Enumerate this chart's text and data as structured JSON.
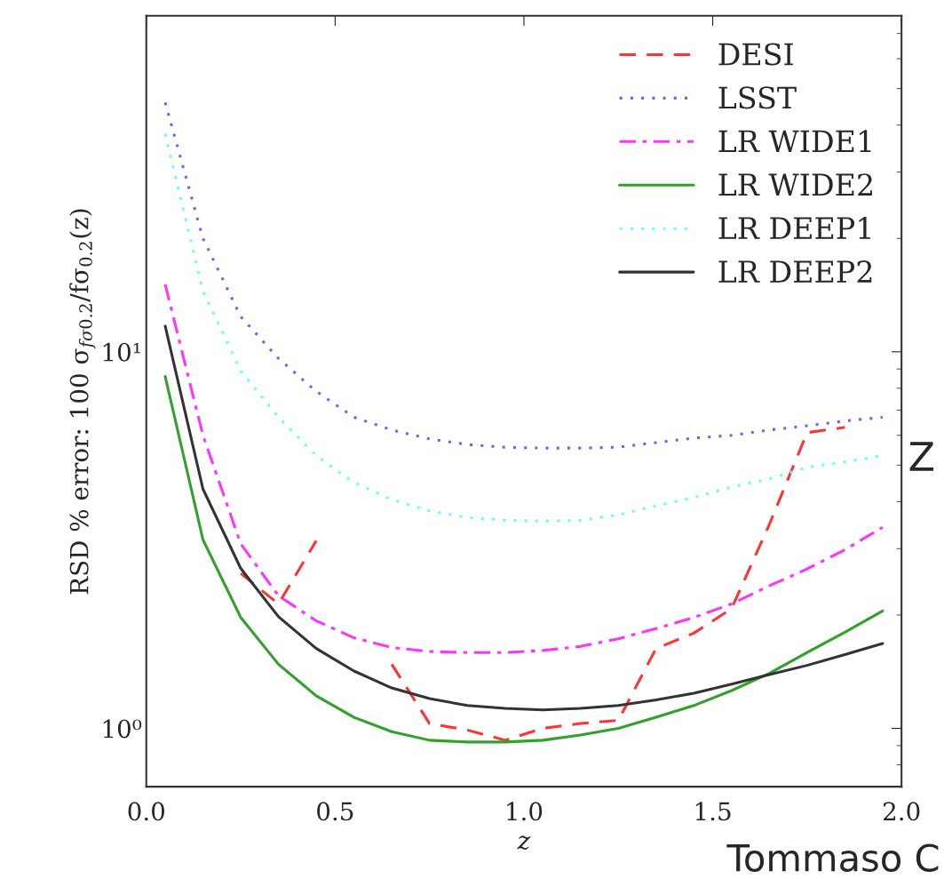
{
  "chart_data": {
    "type": "line",
    "xlabel": "z",
    "ylabel": "RSD % error: 100 σ$_{fσ0.2}$/fσ$_{0.2}$(z)",
    "x": [
      0.05,
      0.15,
      0.25,
      0.35,
      0.45,
      0.55,
      0.65,
      0.75,
      0.85,
      0.95,
      1.05,
      1.15,
      1.25,
      1.35,
      1.45,
      1.55,
      1.65,
      1.75,
      1.85,
      1.95
    ],
    "series": [
      {
        "name": "DESI",
        "color": "#ff3333",
        "line_style": "dashed",
        "values": [
          null,
          null,
          2.58,
          2.14,
          3.15,
          null,
          1.48,
          1.03,
          0.99,
          0.93,
          1.0,
          1.03,
          1.05,
          1.63,
          1.79,
          2.08,
          3.48,
          6.1,
          6.3,
          null
        ]
      },
      {
        "name": "LSST",
        "color": "#6666ff",
        "line_style": "dotted",
        "values": [
          45.9,
          20,
          12.4,
          9.6,
          7.85,
          6.7,
          6.2,
          5.87,
          5.67,
          5.58,
          5.55,
          5.55,
          5.58,
          5.74,
          5.9,
          6.0,
          6.2,
          6.36,
          6.55,
          6.7
        ]
      },
      {
        "name": "LR WIDE1",
        "color": "#ff33ff",
        "line_style": "dashdot",
        "values": [
          15.1,
          6.0,
          3.09,
          2.25,
          1.93,
          1.74,
          1.64,
          1.6,
          1.59,
          1.59,
          1.61,
          1.65,
          1.73,
          1.84,
          1.97,
          2.14,
          2.39,
          2.65,
          2.98,
          3.42
        ]
      },
      {
        "name": "LR WIDE2",
        "color": "#33a02c",
        "line_style": "solid",
        "values": [
          8.6,
          3.17,
          1.97,
          1.48,
          1.22,
          1.07,
          0.98,
          0.93,
          0.92,
          0.92,
          0.93,
          0.96,
          1.0,
          1.07,
          1.15,
          1.26,
          1.4,
          1.59,
          1.8,
          2.05
        ]
      },
      {
        "name": "LR DEEP1",
        "color": "#66ffff",
        "line_style": "dotted",
        "values": [
          37.9,
          14.5,
          8.9,
          6.7,
          5.3,
          4.5,
          4.05,
          3.78,
          3.63,
          3.57,
          3.55,
          3.57,
          3.69,
          3.9,
          4.1,
          4.37,
          4.6,
          4.93,
          5.1,
          5.3
        ]
      },
      {
        "name": "LR DEEP2",
        "color": "#333333",
        "line_style": "solid",
        "values": [
          11.7,
          4.32,
          2.66,
          1.98,
          1.63,
          1.42,
          1.28,
          1.2,
          1.15,
          1.13,
          1.12,
          1.13,
          1.15,
          1.19,
          1.24,
          1.31,
          1.39,
          1.47,
          1.57,
          1.68
        ]
      }
    ],
    "log": "y",
    "xlim": [
      0,
      2
    ],
    "ylim": [
      0.7,
      78
    ],
    "xticks": [
      {
        "value": 0,
        "label": "0.0"
      },
      {
        "value": 0.5,
        "label": "0.5"
      },
      {
        "value": 1,
        "label": "1.0"
      },
      {
        "value": 1.5,
        "label": "1.5"
      },
      {
        "value": 2,
        "label": "2.0"
      }
    ],
    "yticks": [
      {
        "value": 1,
        "label": "10⁰"
      },
      {
        "value": 10,
        "label": "10¹"
      }
    ],
    "legend": "top right",
    "annotations": [
      "Z",
      "Tommaso C"
    ]
  }
}
